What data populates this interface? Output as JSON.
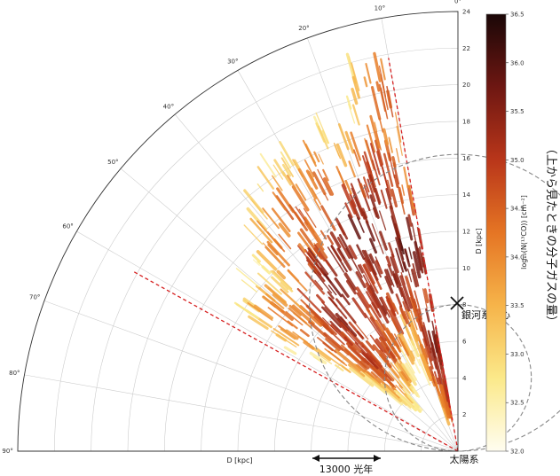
{
  "chart_data": {
    "type": "heatmap",
    "projection": "polar-quadrant",
    "angle_axis": {
      "ticks": [
        0,
        10,
        20,
        30,
        40,
        50,
        60,
        70,
        80,
        90
      ],
      "tick_labels": [
        "0°",
        "10°",
        "20°",
        "30°",
        "40°",
        "50°",
        "60°",
        "70°",
        "80°",
        "90°"
      ],
      "range": [
        0,
        90
      ]
    },
    "radial_axis": {
      "label": "D [kpc]",
      "ticks": [
        2,
        4,
        6,
        8,
        10,
        12,
        14,
        16,
        18,
        20,
        22,
        24
      ],
      "tick_labels": [
        "2",
        "4",
        "6",
        "8",
        "10",
        "12",
        "14",
        "16",
        "18",
        "20",
        "22",
        "24"
      ],
      "range": [
        0,
        24
      ]
    },
    "bottom_axis_label": "D [kpc]",
    "colorbar": {
      "label": "log₁₀(N(¹³CO)) [cm⁻²]",
      "range": [
        32.0,
        36.5
      ],
      "ticks": [
        32.0,
        32.5,
        33.0,
        33.5,
        34.0,
        34.5,
        35.0,
        35.5,
        36.0,
        36.5
      ],
      "tick_labels": [
        "32.0",
        "32.5",
        "33.0",
        "33.5",
        "34.0",
        "34.5",
        "35.0",
        "35.5",
        "36.0",
        "36.5"
      ],
      "colors": [
        "#fffdf0",
        "#fbe98a",
        "#f6b44a",
        "#e57524",
        "#b9361a",
        "#6e1712",
        "#1a0707"
      ]
    },
    "coverage_wedge_deg": [
      10,
      61
    ],
    "dashed_circles": [
      {
        "center_angle_deg": 0,
        "center_distance_kpc": 8.1,
        "radius_kpc": 8.1
      },
      {
        "center_angle_deg": 0,
        "center_distance_kpc": 4.0,
        "radius_kpc": 4.0
      }
    ],
    "clumps": [
      {
        "angle_deg": 18,
        "distance_kpc": 12.8,
        "level": 35.6
      },
      {
        "angle_deg": 24,
        "distance_kpc": 12.2,
        "level": 35.8
      },
      {
        "angle_deg": 30,
        "distance_kpc": 11.4,
        "level": 35.5
      },
      {
        "angle_deg": 36,
        "distance_kpc": 10.4,
        "level": 35.7
      },
      {
        "angle_deg": 42,
        "distance_kpc": 9.2,
        "level": 35.4
      },
      {
        "angle_deg": 14,
        "distance_kpc": 10.8,
        "level": 35.9
      },
      {
        "angle_deg": 20,
        "distance_kpc": 9.6,
        "level": 35.5
      },
      {
        "angle_deg": 28,
        "distance_kpc": 8.6,
        "level": 35.3
      },
      {
        "angle_deg": 36,
        "distance_kpc": 7.4,
        "level": 35.1
      },
      {
        "angle_deg": 44,
        "distance_kpc": 6.6,
        "level": 35.0
      },
      {
        "angle_deg": 12,
        "distance_kpc": 6.0,
        "level": 35.6
      },
      {
        "angle_deg": 8,
        "distance_kpc": 3.6,
        "level": 35.4
      },
      {
        "angle_deg": 14,
        "distance_kpc": 4.2,
        "level": 35.2
      },
      {
        "angle_deg": 48,
        "distance_kpc": 8.6,
        "level": 34.8
      },
      {
        "angle_deg": 34,
        "distance_kpc": 14.8,
        "level": 34.6
      },
      {
        "angle_deg": 26,
        "distance_kpc": 15.6,
        "level": 34.5
      },
      {
        "angle_deg": 16,
        "distance_kpc": 15.0,
        "level": 35.0
      },
      {
        "angle_deg": 10,
        "distance_kpc": 19.0,
        "level": 34.7
      },
      {
        "angle_deg": 52,
        "distance_kpc": 11.0,
        "level": 34.3
      },
      {
        "angle_deg": 40,
        "distance_kpc": 13.4,
        "level": 34.4
      }
    ]
  },
  "annotations": {
    "galactic_center": "銀河系中心",
    "sun": "太陽系",
    "scale_bar": "13000 光年",
    "side_label": "（上から見たときの分子ガスの量）"
  }
}
